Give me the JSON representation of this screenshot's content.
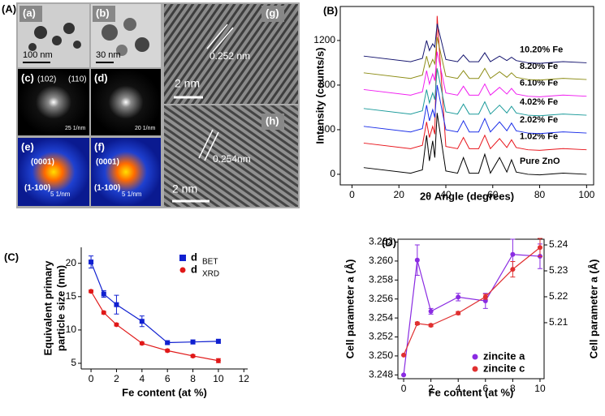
{
  "panel_a": {
    "label": "(A)",
    "images": [
      {
        "label": "(a)",
        "texts": [
          "100 nm"
        ]
      },
      {
        "label": "(b)",
        "texts": [
          "30 nm"
        ]
      },
      {
        "label": "(c)",
        "texts": [
          "(102)",
          "(110)",
          "25 1/nm"
        ]
      },
      {
        "label": "(d)",
        "texts": [
          "20 1/nm"
        ]
      },
      {
        "label": "(e)",
        "texts": [
          "(0001)",
          "(1-100)",
          "5 1/nm"
        ]
      },
      {
        "label": "(f)",
        "texts": [
          "(0001)",
          "(1-100)",
          "5 1/nm"
        ]
      },
      {
        "label": "(g)",
        "texts": [
          "0.252 nm",
          "2 nm"
        ]
      },
      {
        "label": "(h)",
        "texts": [
          "0.254nm",
          "2 nm"
        ]
      }
    ]
  },
  "chart_data": [
    {
      "type": "line",
      "panel_label": "(B)",
      "xlabel": "2θ Angle (degrees)",
      "ylabel": "Intensity (counts/s)",
      "xlim": [
        -5,
        103
      ],
      "xticks": [
        0,
        20,
        40,
        60,
        80,
        100
      ],
      "ylim": [
        -95,
        1505
      ],
      "yticks": [
        0,
        400,
        800,
        1200
      ],
      "x": [
        5,
        25,
        30,
        31.8,
        33,
        34.4,
        35.3,
        36.3,
        40,
        45,
        47.5,
        50,
        54,
        56.6,
        59,
        62.9,
        66,
        68,
        70,
        75,
        80,
        90,
        100
      ],
      "series": [
        {
          "name": "Pure ZnO",
          "color": "#000000",
          "values": [
            60,
            10,
            40,
            350,
            120,
            300,
            150,
            550,
            30,
            10,
            150,
            10,
            10,
            180,
            10,
            150,
            20,
            130,
            20,
            0,
            -5,
            10,
            0
          ]
        },
        {
          "name": "1.02% Fe",
          "color": "#e8141b",
          "values": [
            280,
            230,
            260,
            470,
            330,
            430,
            360,
            1420,
            250,
            230,
            330,
            230,
            230,
            350,
            230,
            320,
            240,
            310,
            240,
            220,
            215,
            230,
            220
          ]
        },
        {
          "name": "2.02% Fe",
          "color": "#1a2ee8",
          "values": [
            430,
            380,
            410,
            620,
            480,
            580,
            510,
            800,
            400,
            380,
            480,
            380,
            380,
            500,
            380,
            470,
            390,
            460,
            390,
            370,
            365,
            380,
            370
          ]
        },
        {
          "name": "4.02% Fe",
          "color": "#1a9a9a",
          "values": [
            590,
            540,
            570,
            760,
            640,
            730,
            670,
            950,
            560,
            540,
            630,
            540,
            540,
            650,
            540,
            620,
            550,
            610,
            550,
            530,
            525,
            540,
            530
          ]
        },
        {
          "name": "6.10% Fe",
          "color": "#f01ef0",
          "values": [
            760,
            710,
            740,
            930,
            810,
            900,
            840,
            1100,
            730,
            710,
            790,
            710,
            710,
            810,
            710,
            780,
            720,
            770,
            720,
            700,
            695,
            710,
            700
          ]
        },
        {
          "name": "8.20% Fe",
          "color": "#8c8c14",
          "values": [
            910,
            860,
            890,
            1060,
            960,
            1030,
            990,
            1230,
            880,
            860,
            930,
            860,
            860,
            950,
            860,
            920,
            870,
            910,
            870,
            850,
            845,
            860,
            850
          ]
        },
        {
          "name": "10.20% Fe",
          "color": "#14146e",
          "values": [
            1060,
            1010,
            1040,
            1200,
            1110,
            1170,
            1140,
            1350,
            1030,
            1010,
            1070,
            1010,
            1010,
            1090,
            1010,
            1060,
            1020,
            1050,
            1020,
            1000,
            995,
            1010,
            1000
          ]
        }
      ]
    },
    {
      "type": "errorline",
      "panel_label": "(C)",
      "xlabel": "Fe content (at %)",
      "ylabel": [
        "Equivalent primary",
        "particle size (nm)"
      ],
      "xlim": [
        -0.77,
        12.3
      ],
      "xticks": [
        0,
        2,
        4,
        6,
        8,
        10,
        12
      ],
      "ylim": [
        4.15,
        22.4
      ],
      "yticks": [
        5,
        10,
        15,
        20
      ],
      "x": [
        0,
        1,
        2,
        4,
        6,
        8,
        10
      ],
      "series": [
        {
          "name": "d",
          "subscript": "BET",
          "color": "#1020d0",
          "marker": "square",
          "values": [
            20.2,
            15.4,
            13.8,
            11.3,
            8.1,
            8.2,
            8.3
          ],
          "errors": [
            0.9,
            0.5,
            1.4,
            0.8,
            0.2,
            0.3,
            0.3
          ]
        },
        {
          "name": "d",
          "subscript": "XRD",
          "color": "#e01818",
          "marker": "circle",
          "values": [
            15.8,
            12.6,
            10.8,
            8.0,
            6.9,
            6.1,
            5.4
          ],
          "errors": [
            0.2,
            0.2,
            0.2,
            0.2,
            0.2,
            0.2,
            0.3
          ]
        }
      ]
    },
    {
      "type": "errorline",
      "panel_label": "(D)",
      "xlabel": "Fe content (at %)",
      "ylabel": "Cell parameter a (Å)",
      "y2label": "Cell parameter a (Å)",
      "xlim": [
        -0.42,
        10.3
      ],
      "xticks": [
        0,
        2,
        4,
        6,
        8,
        10
      ],
      "ylim": [
        3.2476,
        3.2623
      ],
      "yticks": [
        3.248,
        {
          "value": 3.25,
          "label": "3.250"
        },
        3.252,
        3.254,
        3.256,
        3.258,
        {
          "value": 3.26,
          "label": "3.260"
        },
        3.262
      ],
      "y2lim": [
        5.1884,
        5.2422
      ],
      "y2ticks": [
        5.21,
        5.22,
        5.23,
        5.24
      ],
      "x": [
        0,
        1,
        2,
        4,
        6,
        8,
        10
      ],
      "series": [
        {
          "name": "zincite a",
          "color": "#8a2be2",
          "marker": "circle",
          "values": [
            3.248,
            3.2601,
            3.2547,
            3.2562,
            3.2558,
            3.2607,
            3.2605
          ],
          "errors": [
            0,
            0.0016,
            0.0003,
            0.0004,
            0.0008,
            0.0016,
            0.0013
          ]
        },
        {
          "name": "zincite c",
          "color": "#e03030",
          "marker": "circle",
          "axis": "y2",
          "values": [
            5.1975,
            5.2097,
            5.209,
            5.2137,
            5.22,
            5.2306,
            5.239
          ],
          "errors": [
            0,
            0.0005,
            0.0005,
            0.0006,
            0.001,
            0.003,
            0.0035
          ]
        }
      ]
    }
  ]
}
